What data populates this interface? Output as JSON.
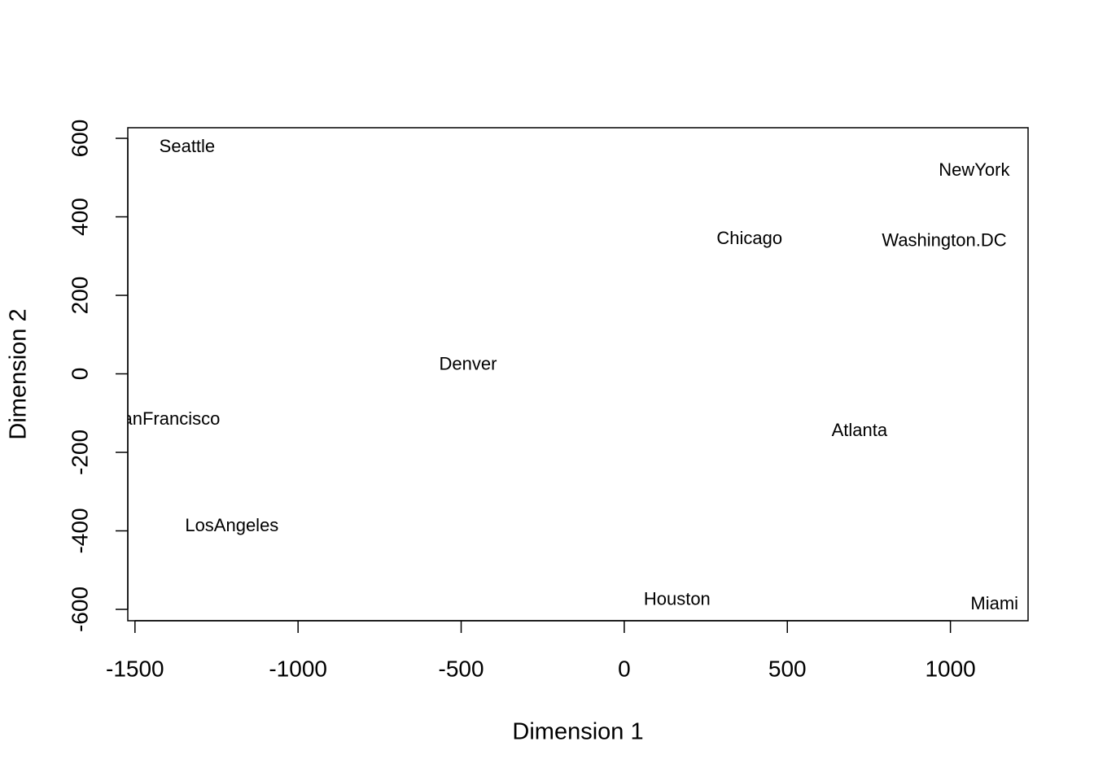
{
  "chart_data": {
    "type": "scatter",
    "x_label": "Dimension 1",
    "y_label": "Dimension 2",
    "labels": [
      "Seattle",
      "NewYork",
      "Chicago",
      "Washington.DC",
      "Denver",
      "SanFrancisco",
      "Atlanta",
      "LosAngeles",
      "Houston",
      "Miami"
    ],
    "x": [
      -1340,
      1073,
      384,
      981,
      -479,
      -1407,
      721,
      -1203,
      162,
      1135
    ],
    "values": [
      577,
      517,
      343,
      337,
      22,
      -117,
      -146,
      -389,
      -577,
      -588
    ],
    "xlim": [
      -1522,
      1238
    ],
    "ylim": [
      -629,
      627
    ],
    "xticks": [
      -1500,
      -1000,
      -500,
      0,
      500,
      1000
    ],
    "yticks": [
      -600,
      -400,
      -200,
      0,
      200,
      400,
      600
    ]
  }
}
